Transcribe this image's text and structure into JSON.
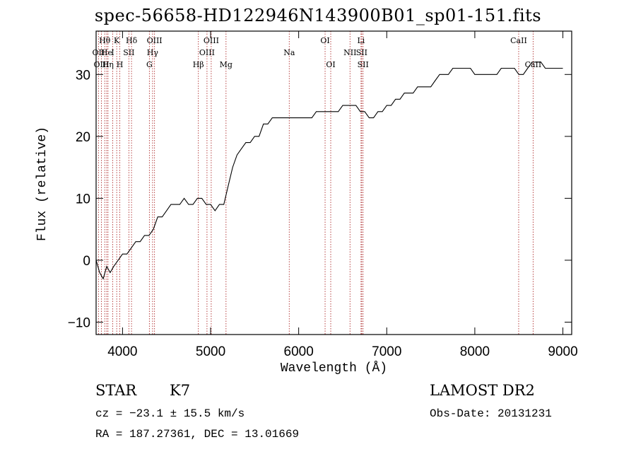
{
  "title": "spec-56658-HD122946N143900B01_sp01-151.fits",
  "info": {
    "class": "STAR",
    "subclass": "K7",
    "survey": "LAMOST DR2",
    "cz": "cz = −23.1 ± 15.5 km/s",
    "obs_date": "Obs-Date: 20131231",
    "radec": "RA = 187.27361, DEC =  13.01669"
  },
  "chart_data": {
    "type": "line",
    "xlabel": "Wavelength (Å)",
    "ylabel": "Flux (relative)",
    "xlim": [
      3700,
      9100
    ],
    "ylim": [
      -12,
      37
    ],
    "xticks": [
      4000,
      5000,
      6000,
      7000,
      8000,
      9000
    ],
    "yticks": [
      -10,
      0,
      10,
      20,
      30
    ],
    "grid": false,
    "series": [
      {
        "x": [
          3700,
          3740,
          3780,
          3820,
          3860,
          3900,
          3950,
          4000,
          4050,
          4100,
          4150,
          4200,
          4250,
          4300,
          4350,
          4400,
          4450,
          4500,
          4550,
          4600,
          4650,
          4700,
          4750,
          4800,
          4850,
          4900,
          4950,
          5000,
          5050,
          5100,
          5150,
          5200,
          5250,
          5300,
          5350,
          5400,
          5450,
          5500,
          5550,
          5600,
          5650,
          5700,
          5750,
          5800,
          5850,
          5900,
          5950,
          6000,
          6050,
          6100,
          6150,
          6200,
          6250,
          6300,
          6350,
          6400,
          6450,
          6500,
          6550,
          6600,
          6650,
          6700,
          6750,
          6800,
          6850,
          6900,
          6950,
          7000,
          7050,
          7100,
          7150,
          7200,
          7250,
          7300,
          7350,
          7400,
          7450,
          7500,
          7550,
          7600,
          7650,
          7700,
          7750,
          7800,
          7850,
          7900,
          7950,
          8000,
          8050,
          8100,
          8150,
          8200,
          8250,
          8300,
          8350,
          8400,
          8450,
          8500,
          8550,
          8600,
          8650,
          8700,
          8750,
          8800,
          8850,
          8900,
          8950,
          9000
        ],
        "y": [
          0,
          -2,
          -3,
          -1,
          -2,
          -1,
          0,
          1,
          1,
          2,
          3,
          3,
          4,
          4,
          5,
          7,
          7,
          8,
          9,
          9,
          9,
          10,
          9,
          9,
          10,
          10,
          9,
          9,
          8,
          9,
          9,
          12,
          15,
          17,
          18,
          19,
          19,
          20,
          20,
          22,
          22,
          23,
          23,
          23,
          23,
          23,
          23,
          23,
          23,
          23,
          23,
          24,
          24,
          24,
          24,
          24,
          24,
          25,
          25,
          25,
          25,
          24,
          24,
          23,
          23,
          24,
          24,
          25,
          25,
          26,
          26,
          27,
          27,
          27,
          28,
          28,
          28,
          28,
          29,
          30,
          30,
          30,
          31,
          31,
          31,
          31,
          31,
          30,
          30,
          30,
          30,
          30,
          30,
          31,
          31,
          31,
          31,
          30,
          30,
          31,
          32,
          32,
          32,
          31,
          31,
          31,
          31,
          31
        ]
      }
    ],
    "line_markers": [
      {
        "label": "Hθ",
        "wl": 3798,
        "row": 1
      },
      {
        "label": "OII",
        "wl": 3727,
        "row": 2
      },
      {
        "label": "OIII",
        "wl": 3760,
        "row": 3
      },
      {
        "label": "He",
        "wl": 3820,
        "row": 2
      },
      {
        "label": "Hη",
        "wl": 3835,
        "row": 3
      },
      {
        "label": "K",
        "wl": 3934,
        "row": 1
      },
      {
        "label": "H",
        "wl": 3969,
        "row": 3
      },
      {
        "label": "I",
        "wl": 3889,
        "row": 2
      },
      {
        "label": "SII",
        "wl": 4072,
        "row": 2
      },
      {
        "label": "Hδ",
        "wl": 4102,
        "row": 1
      },
      {
        "label": "OIII",
        "wl": 4363,
        "row": 1
      },
      {
        "label": "Hγ",
        "wl": 4341,
        "row": 2
      },
      {
        "label": "G",
        "wl": 4305,
        "row": 3
      },
      {
        "label": "OIII",
        "wl": 5007,
        "row": 1
      },
      {
        "label": "OIII",
        "wl": 4959,
        "row": 2
      },
      {
        "label": "Hβ",
        "wl": 4861,
        "row": 3
      },
      {
        "label": "Mg",
        "wl": 5175,
        "row": 3
      },
      {
        "label": "Na",
        "wl": 5893,
        "row": 2
      },
      {
        "label": "OI",
        "wl": 6300,
        "row": 1
      },
      {
        "label": "OI",
        "wl": 6364,
        "row": 3
      },
      {
        "label": "Li",
        "wl": 6708,
        "row": 1
      },
      {
        "label": "NII",
        "wl": 6583,
        "row": 2
      },
      {
        "label": "SII",
        "wl": 6716,
        "row": 2
      },
      {
        "label": "SII",
        "wl": 6731,
        "row": 3
      },
      {
        "label": "CaII",
        "wl": 8498,
        "row": 1
      },
      {
        "label": "CaII",
        "wl": 8662,
        "row": 3
      }
    ]
  }
}
